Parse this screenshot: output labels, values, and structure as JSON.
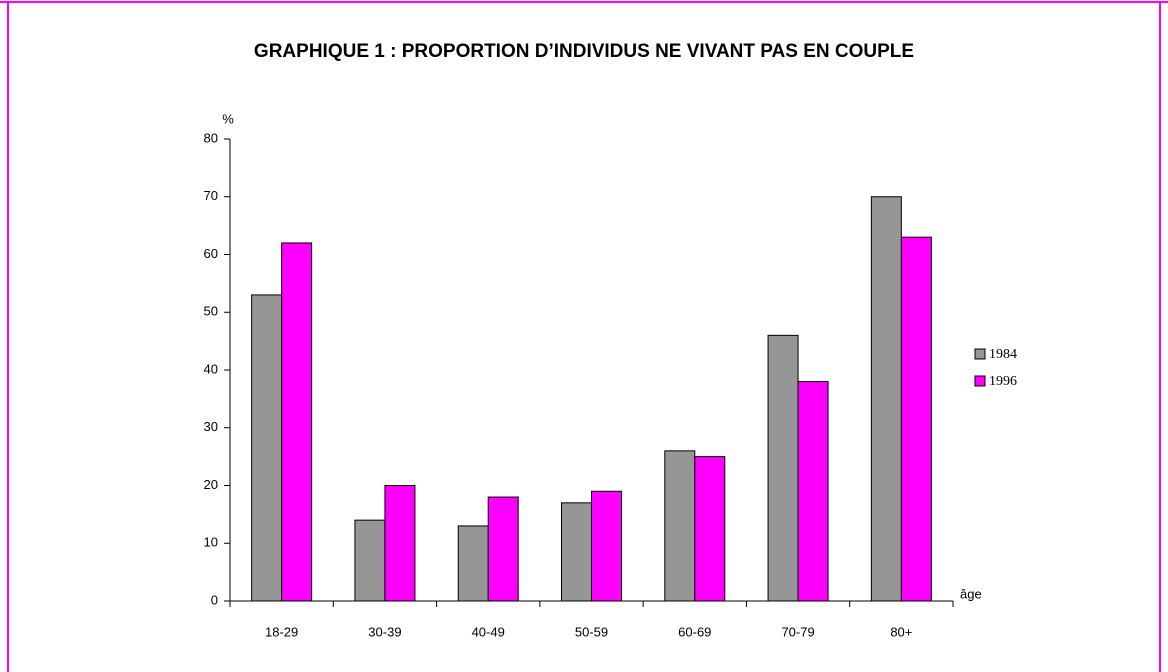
{
  "chart_data": {
    "type": "bar",
    "title": "GRAPHIQUE 1 : PROPORTION D’INDIVIDUS NE VIVANT PAS EN COUPLE",
    "y_label": "%",
    "x_label": "âge",
    "categories": [
      "18-29",
      "30-39",
      "40-49",
      "50-59",
      "60-69",
      "70-79",
      "80+"
    ],
    "series": [
      {
        "name": "1984",
        "color": "#969696",
        "values": [
          53,
          14,
          13,
          17,
          26,
          46,
          70
        ]
      },
      {
        "name": "1996",
        "color": "#ff00ff",
        "values": [
          62,
          20,
          18,
          19,
          25,
          38,
          63
        ]
      }
    ],
    "ylim": [
      0,
      80
    ],
    "yticks": [
      0,
      10,
      20,
      30,
      40,
      50,
      60,
      70,
      80
    ],
    "legend": "right",
    "border_color": "#ff00ff"
  }
}
